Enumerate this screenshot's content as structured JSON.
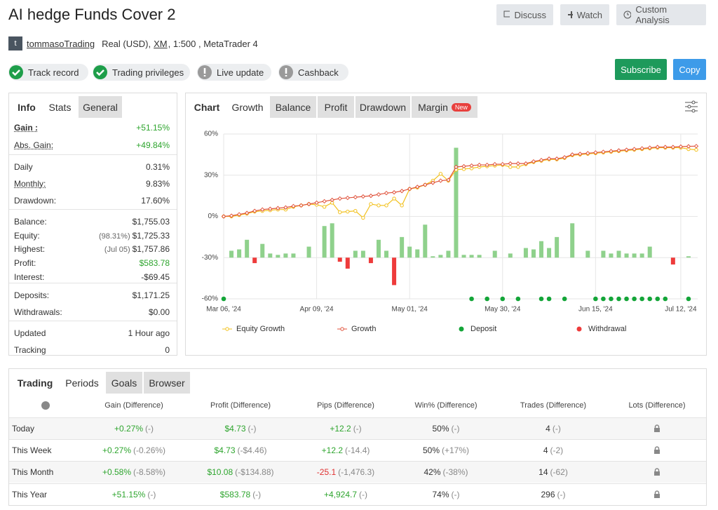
{
  "header": {
    "title": "AI hedge Funds Cover 2",
    "buttons": [
      "Discuss",
      "Watch",
      "Custom Analysis"
    ]
  },
  "account": {
    "avatar": "t",
    "user": "tommasoTrading",
    "type": "Real (USD),",
    "broker": "XM",
    "details": ", 1:500 , MetaTrader 4"
  },
  "badges": [
    {
      "label": "Track record",
      "state": "check"
    },
    {
      "label": "Trading privileges",
      "state": "check"
    },
    {
      "label": "Live update",
      "state": "info"
    },
    {
      "label": "Cashback",
      "state": "info"
    }
  ],
  "actions": [
    "Subscribe",
    "Copy"
  ],
  "stats": {
    "tabs": [
      "Info",
      "Stats",
      "General"
    ],
    "groups": [
      [
        {
          "label": "Gain :",
          "value": "+51.15%",
          "color": "#2ea52e",
          "strong": true
        },
        {
          "label": "Abs. Gain:",
          "value": "+49.84%",
          "color": "#2ea52e",
          "underline": true
        }
      ],
      [
        {
          "label": "Daily",
          "value": "0.31%"
        },
        {
          "label": "Monthly:",
          "value": "9.83%",
          "underline": true
        },
        {
          "label": "Drawdown:",
          "value": "17.60%"
        }
      ],
      [
        {
          "label": "Balance:",
          "value": "$1,755.03"
        },
        {
          "label": "Equity:",
          "note": "(98.31%)",
          "value": "$1,725.33"
        },
        {
          "label": "Highest:",
          "note": "(Jul 05)",
          "value": "$1,757.86"
        },
        {
          "label": "Profit:",
          "value": "$583.78",
          "color": "#2ea52e"
        },
        {
          "label": "Interest:",
          "value": "-$69.45"
        }
      ],
      [
        {
          "label": "Deposits:",
          "value": "$1,171.25"
        },
        {
          "label": "Withdrawals:",
          "value": "$0.00"
        }
      ],
      [
        {
          "label": "Updated",
          "value": "1 Hour ago"
        },
        {
          "label": "Tracking",
          "value": "0"
        }
      ]
    ]
  },
  "chart_tabs": {
    "tabs": [
      "Chart",
      "Growth",
      "Balance",
      "Profit",
      "Drawdown",
      "Margin"
    ],
    "new_badge": "New"
  },
  "chart_data": {
    "type": "line",
    "categories": [
      "Mar 06, '24",
      null,
      null,
      null,
      null,
      null,
      null,
      null,
      null,
      null,
      null,
      null,
      "Apr 09, '24",
      null,
      null,
      null,
      null,
      null,
      null,
      null,
      null,
      null,
      null,
      null,
      "May 01, '24",
      null,
      null,
      null,
      null,
      null,
      null,
      null,
      null,
      null,
      null,
      null,
      "May 30, '24",
      null,
      null,
      null,
      null,
      null,
      null,
      null,
      null,
      null,
      null,
      null,
      "Jun 15, '24",
      null,
      null,
      null,
      null,
      null,
      null,
      null,
      null,
      null,
      null,
      "Jul 12, '24",
      null,
      null
    ],
    "ylim": [
      -60,
      60
    ],
    "yticks": [
      {
        "value": -60,
        "label": "-60%"
      },
      {
        "value": -30,
        "label": "-30%"
      },
      {
        "value": 0,
        "label": "0%"
      },
      {
        "value": 30,
        "label": "30%"
      },
      {
        "value": 60,
        "label": "60%"
      }
    ],
    "grid": true,
    "series": [
      {
        "type": "bar",
        "color": "#8fd18c",
        "negative_color": "#ee3b3b",
        "values": [
          null,
          -25,
          -24,
          -17,
          -34,
          -20,
          -27,
          -28,
          -27,
          -27,
          null,
          -22,
          null,
          -7,
          -5,
          -33,
          -38,
          -25,
          -25,
          -34,
          -17,
          -25,
          -50,
          -15,
          -22,
          -24,
          -6,
          -29,
          -28,
          -25,
          50,
          -28,
          -28,
          -28,
          null,
          -25,
          null,
          -27,
          null,
          -23,
          -24,
          -18,
          -23,
          -15,
          null,
          -5,
          null,
          -25,
          null,
          -25,
          -27,
          -25,
          -27,
          -27,
          -27,
          -22,
          null,
          null,
          -35,
          null,
          -29,
          -30
        ]
      },
      {
        "name": "Equity Growth",
        "type": "line",
        "marker": "circle",
        "color": "#f2c11d",
        "values": [
          0,
          0,
          1,
          2,
          3.5,
          4,
          4.5,
          5,
          5,
          7,
          8,
          9,
          8.5,
          7,
          10,
          3,
          3.5,
          4,
          -1,
          9,
          8,
          8,
          13,
          8,
          20,
          21,
          23,
          26,
          31,
          26,
          34,
          34.5,
          35,
          36,
          36.5,
          37,
          37.5,
          36,
          36,
          38,
          39.5,
          40.5,
          41.5,
          41.5,
          42.5,
          44.5,
          45,
          45.5,
          46,
          46.5,
          47,
          47.5,
          48,
          48.5,
          49,
          49.5,
          50,
          50,
          50,
          50,
          49,
          48.5
        ]
      },
      {
        "name": "Growth",
        "type": "line",
        "marker": "diamond",
        "color": "#e0533c",
        "values": [
          0,
          0.5,
          1.5,
          2.5,
          4,
          5,
          5.5,
          6,
          6.5,
          7.5,
          8,
          9,
          10,
          11,
          12,
          13,
          13.5,
          14,
          14.5,
          15,
          16,
          17,
          17.5,
          18.5,
          20,
          21.5,
          23,
          24.5,
          26,
          26.5,
          36,
          36.5,
          37,
          37.5,
          37.5,
          38,
          38,
          38.5,
          38.5,
          38.5,
          40,
          41,
          42,
          42,
          43,
          45,
          45.5,
          46,
          46.5,
          47,
          47.5,
          48,
          48.5,
          49,
          49.5,
          50,
          50.5,
          50.5,
          50.5,
          50.8,
          51,
          51.15
        ]
      },
      {
        "name": "Deposit",
        "type": "scatter",
        "color": "#13a538",
        "values": [
          -60,
          null,
          null,
          null,
          null,
          null,
          null,
          null,
          null,
          null,
          null,
          null,
          null,
          null,
          null,
          null,
          null,
          null,
          null,
          null,
          null,
          null,
          null,
          null,
          null,
          null,
          null,
          null,
          null,
          null,
          null,
          null,
          -60,
          null,
          -60,
          null,
          -60,
          null,
          -60,
          null,
          null,
          -60,
          -60,
          null,
          -60,
          null,
          null,
          null,
          -60,
          -60,
          -60,
          -60,
          -60,
          -60,
          -60,
          -60,
          -60,
          -60,
          null,
          null,
          -60,
          null
        ]
      },
      {
        "name": "Withdrawal",
        "type": "scatter",
        "color": "#ee3b3b",
        "values": [
          null,
          null,
          null,
          null,
          null,
          null,
          null,
          null,
          null,
          null,
          null,
          null,
          null,
          null,
          null,
          null,
          null,
          null,
          null,
          null,
          null,
          null,
          null,
          null,
          null,
          null,
          null,
          null,
          null,
          null,
          null,
          null,
          null,
          null,
          null,
          null,
          null,
          null,
          null,
          null,
          null,
          null,
          null,
          null,
          null,
          null,
          null,
          null,
          null,
          null,
          null,
          null,
          null,
          null,
          null,
          null,
          null,
          null,
          null,
          null,
          null,
          null
        ]
      }
    ]
  },
  "periods": {
    "tabs": [
      "Trading",
      "Periods",
      "Goals",
      "Browser"
    ],
    "columns": [
      "Gain (Difference)",
      "Profit (Difference)",
      "Pips (Difference)",
      "Win% (Difference)",
      "Trades (Difference)",
      "Lots (Difference)"
    ],
    "rows": [
      {
        "label": "Today",
        "cells": [
          [
            "+0.27%",
            "(-)"
          ],
          [
            "$4.73",
            "(-)"
          ],
          [
            "+12.2",
            "(-)"
          ],
          [
            "50%",
            "(-)"
          ],
          [
            "4",
            "(-)"
          ]
        ]
      },
      {
        "label": "This Week",
        "cells": [
          [
            "+0.27%",
            "(-0.26%)"
          ],
          [
            "$4.73",
            "(-$4.46)"
          ],
          [
            "+12.2",
            "(-14.4)"
          ],
          [
            "50%",
            "(+17%)"
          ],
          [
            "4",
            "(-2)"
          ]
        ]
      },
      {
        "label": "This Month",
        "cells": [
          [
            "+0.58%",
            "(-8.58%)"
          ],
          [
            "$10.08",
            "(-$134.88)"
          ],
          [
            "-25.1",
            "(-1,476.3)"
          ],
          [
            "42%",
            "(-38%)"
          ],
          [
            "14",
            "(-62)"
          ]
        ]
      },
      {
        "label": "This Year",
        "cells": [
          [
            "+51.15%",
            "(-)"
          ],
          [
            "$583.78",
            "(-)"
          ],
          [
            "+4,924.7",
            "(-)"
          ],
          [
            "74%",
            "(-)"
          ],
          [
            "296",
            "(-)"
          ]
        ]
      }
    ],
    "column_colors": [
      "#2ea52e",
      "#2ea52e",
      "#2ea52e",
      null,
      null
    ]
  }
}
